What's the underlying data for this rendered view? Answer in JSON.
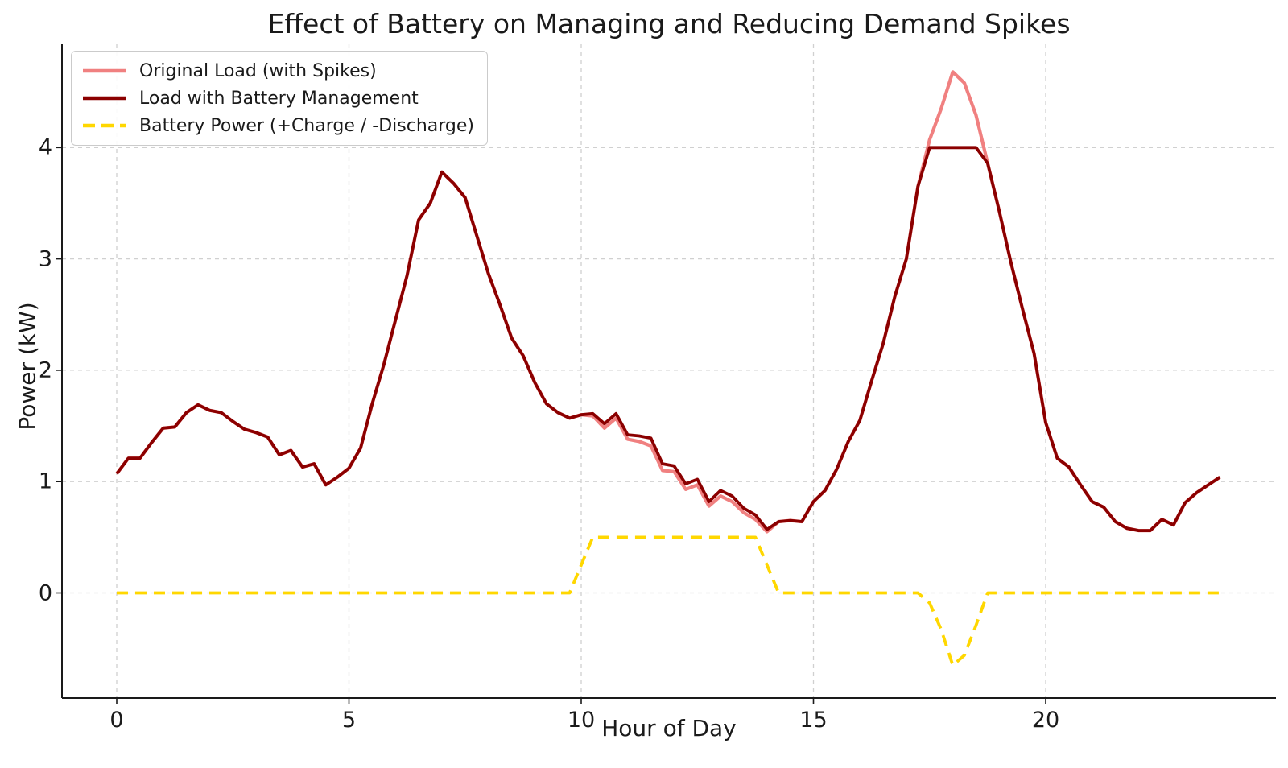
{
  "colors": {
    "background": "#ffffff",
    "grid": "#d0d0d0",
    "axis": "#1a1a1a",
    "text": "#1a1a1a",
    "original_load": "#F08080",
    "managed_load": "#8B0000",
    "battery_power": "#FFD700"
  },
  "chart_data": {
    "type": "line",
    "title": "Effect of Battery on Managing and Reducing Demand Spikes",
    "xlabel": "Hour of Day",
    "ylabel": "Power (kW)",
    "xlim": [
      -1.2,
      24.9
    ],
    "ylim": [
      -0.94,
      4.92
    ],
    "xticks": [
      0,
      5,
      10,
      15,
      20
    ],
    "yticks": [
      0,
      1,
      2,
      3,
      4
    ],
    "grid": true,
    "grid_style": "dashed",
    "legend_position": "upper-left",
    "x": [
      0,
      0.25,
      0.5,
      0.75,
      1,
      1.25,
      1.5,
      1.75,
      2,
      2.25,
      2.5,
      2.75,
      3,
      3.25,
      3.5,
      3.75,
      4,
      4.25,
      4.5,
      4.75,
      5,
      5.25,
      5.5,
      5.75,
      6,
      6.25,
      6.5,
      6.75,
      7,
      7.25,
      7.5,
      7.75,
      8,
      8.25,
      8.5,
      8.75,
      9,
      9.25,
      9.5,
      9.75,
      10,
      10.25,
      10.5,
      10.75,
      11,
      11.25,
      11.5,
      11.75,
      12,
      12.25,
      12.5,
      12.75,
      13,
      13.25,
      13.5,
      13.75,
      14,
      14.25,
      14.5,
      14.75,
      15,
      15.25,
      15.5,
      15.75,
      16,
      16.25,
      16.5,
      16.75,
      17,
      17.25,
      17.5,
      17.75,
      18,
      18.25,
      18.5,
      18.75,
      19,
      19.25,
      19.5,
      19.75,
      20,
      20.25,
      20.5,
      20.75,
      21,
      21.25,
      21.5,
      21.75,
      22,
      22.25,
      22.5,
      22.75,
      23,
      23.25,
      23.5,
      23.75
    ],
    "series": [
      {
        "name": "Original Load (with Spikes)",
        "color": "#F08080",
        "style": "solid",
        "values": [
          1.07,
          1.21,
          1.21,
          1.35,
          1.48,
          1.49,
          1.62,
          1.69,
          1.64,
          1.62,
          1.54,
          1.47,
          1.44,
          1.4,
          1.24,
          1.28,
          1.13,
          1.16,
          0.97,
          1.04,
          1.12,
          1.3,
          1.7,
          2.05,
          2.45,
          2.85,
          3.35,
          3.5,
          3.78,
          3.68,
          3.55,
          3.21,
          2.87,
          2.59,
          2.29,
          2.13,
          1.89,
          1.7,
          1.62,
          1.57,
          1.6,
          1.59,
          1.48,
          1.57,
          1.38,
          1.36,
          1.32,
          1.1,
          1.09,
          0.93,
          0.97,
          0.78,
          0.87,
          0.82,
          0.72,
          0.66,
          0.55,
          0.64,
          0.65,
          0.64,
          0.82,
          0.92,
          1.11,
          1.36,
          1.55,
          1.9,
          2.24,
          2.66,
          3.0,
          3.65,
          4.07,
          4.35,
          4.68,
          4.58,
          4.29,
          3.86,
          3.43,
          2.97,
          2.55,
          2.15,
          1.53,
          1.21,
          1.13,
          0.97,
          0.82,
          0.77,
          0.64,
          0.58,
          0.56,
          0.56,
          0.66,
          0.61,
          0.81,
          0.9,
          0.97,
          1.04
        ]
      },
      {
        "name": "Load with Battery Management",
        "color": "#8B0000",
        "style": "solid",
        "values": [
          1.07,
          1.21,
          1.21,
          1.35,
          1.48,
          1.49,
          1.62,
          1.69,
          1.64,
          1.62,
          1.54,
          1.47,
          1.44,
          1.4,
          1.24,
          1.28,
          1.13,
          1.16,
          0.97,
          1.04,
          1.12,
          1.3,
          1.7,
          2.05,
          2.45,
          2.85,
          3.35,
          3.5,
          3.78,
          3.68,
          3.55,
          3.21,
          2.87,
          2.59,
          2.29,
          2.13,
          1.89,
          1.7,
          1.62,
          1.57,
          1.6,
          1.61,
          1.52,
          1.61,
          1.42,
          1.41,
          1.39,
          1.16,
          1.14,
          0.98,
          1.02,
          0.82,
          0.92,
          0.87,
          0.76,
          0.7,
          0.57,
          0.64,
          0.65,
          0.64,
          0.82,
          0.92,
          1.11,
          1.36,
          1.55,
          1.9,
          2.24,
          2.66,
          3.0,
          3.65,
          4.0,
          4.0,
          4.0,
          4.0,
          4.0,
          3.86,
          3.43,
          2.97,
          2.55,
          2.15,
          1.53,
          1.21,
          1.13,
          0.97,
          0.82,
          0.77,
          0.64,
          0.58,
          0.56,
          0.56,
          0.66,
          0.61,
          0.81,
          0.9,
          0.97,
          1.04
        ]
      },
      {
        "name": "Battery Power (+Charge / -Discharge)",
        "color": "#FFD700",
        "style": "dashed",
        "values": [
          0,
          0,
          0,
          0,
          0,
          0,
          0,
          0,
          0,
          0,
          0,
          0,
          0,
          0,
          0,
          0,
          0,
          0,
          0,
          0,
          0,
          0,
          0,
          0,
          0,
          0,
          0,
          0,
          0,
          0,
          0,
          0,
          0,
          0,
          0,
          0,
          0,
          0,
          0,
          0,
          0.25,
          0.5,
          0.5,
          0.5,
          0.5,
          0.5,
          0.5,
          0.5,
          0.5,
          0.5,
          0.5,
          0.5,
          0.5,
          0.5,
          0.5,
          0.5,
          0.25,
          0,
          0,
          0,
          0,
          0,
          0,
          0,
          0,
          0,
          0,
          0,
          0,
          0,
          -0.09,
          -0.33,
          -0.65,
          -0.56,
          -0.29,
          0,
          0,
          0,
          0,
          0,
          0,
          0,
          0,
          0,
          0,
          0,
          0,
          0,
          0,
          0,
          0,
          0,
          0,
          0,
          0,
          0
        ]
      }
    ]
  }
}
